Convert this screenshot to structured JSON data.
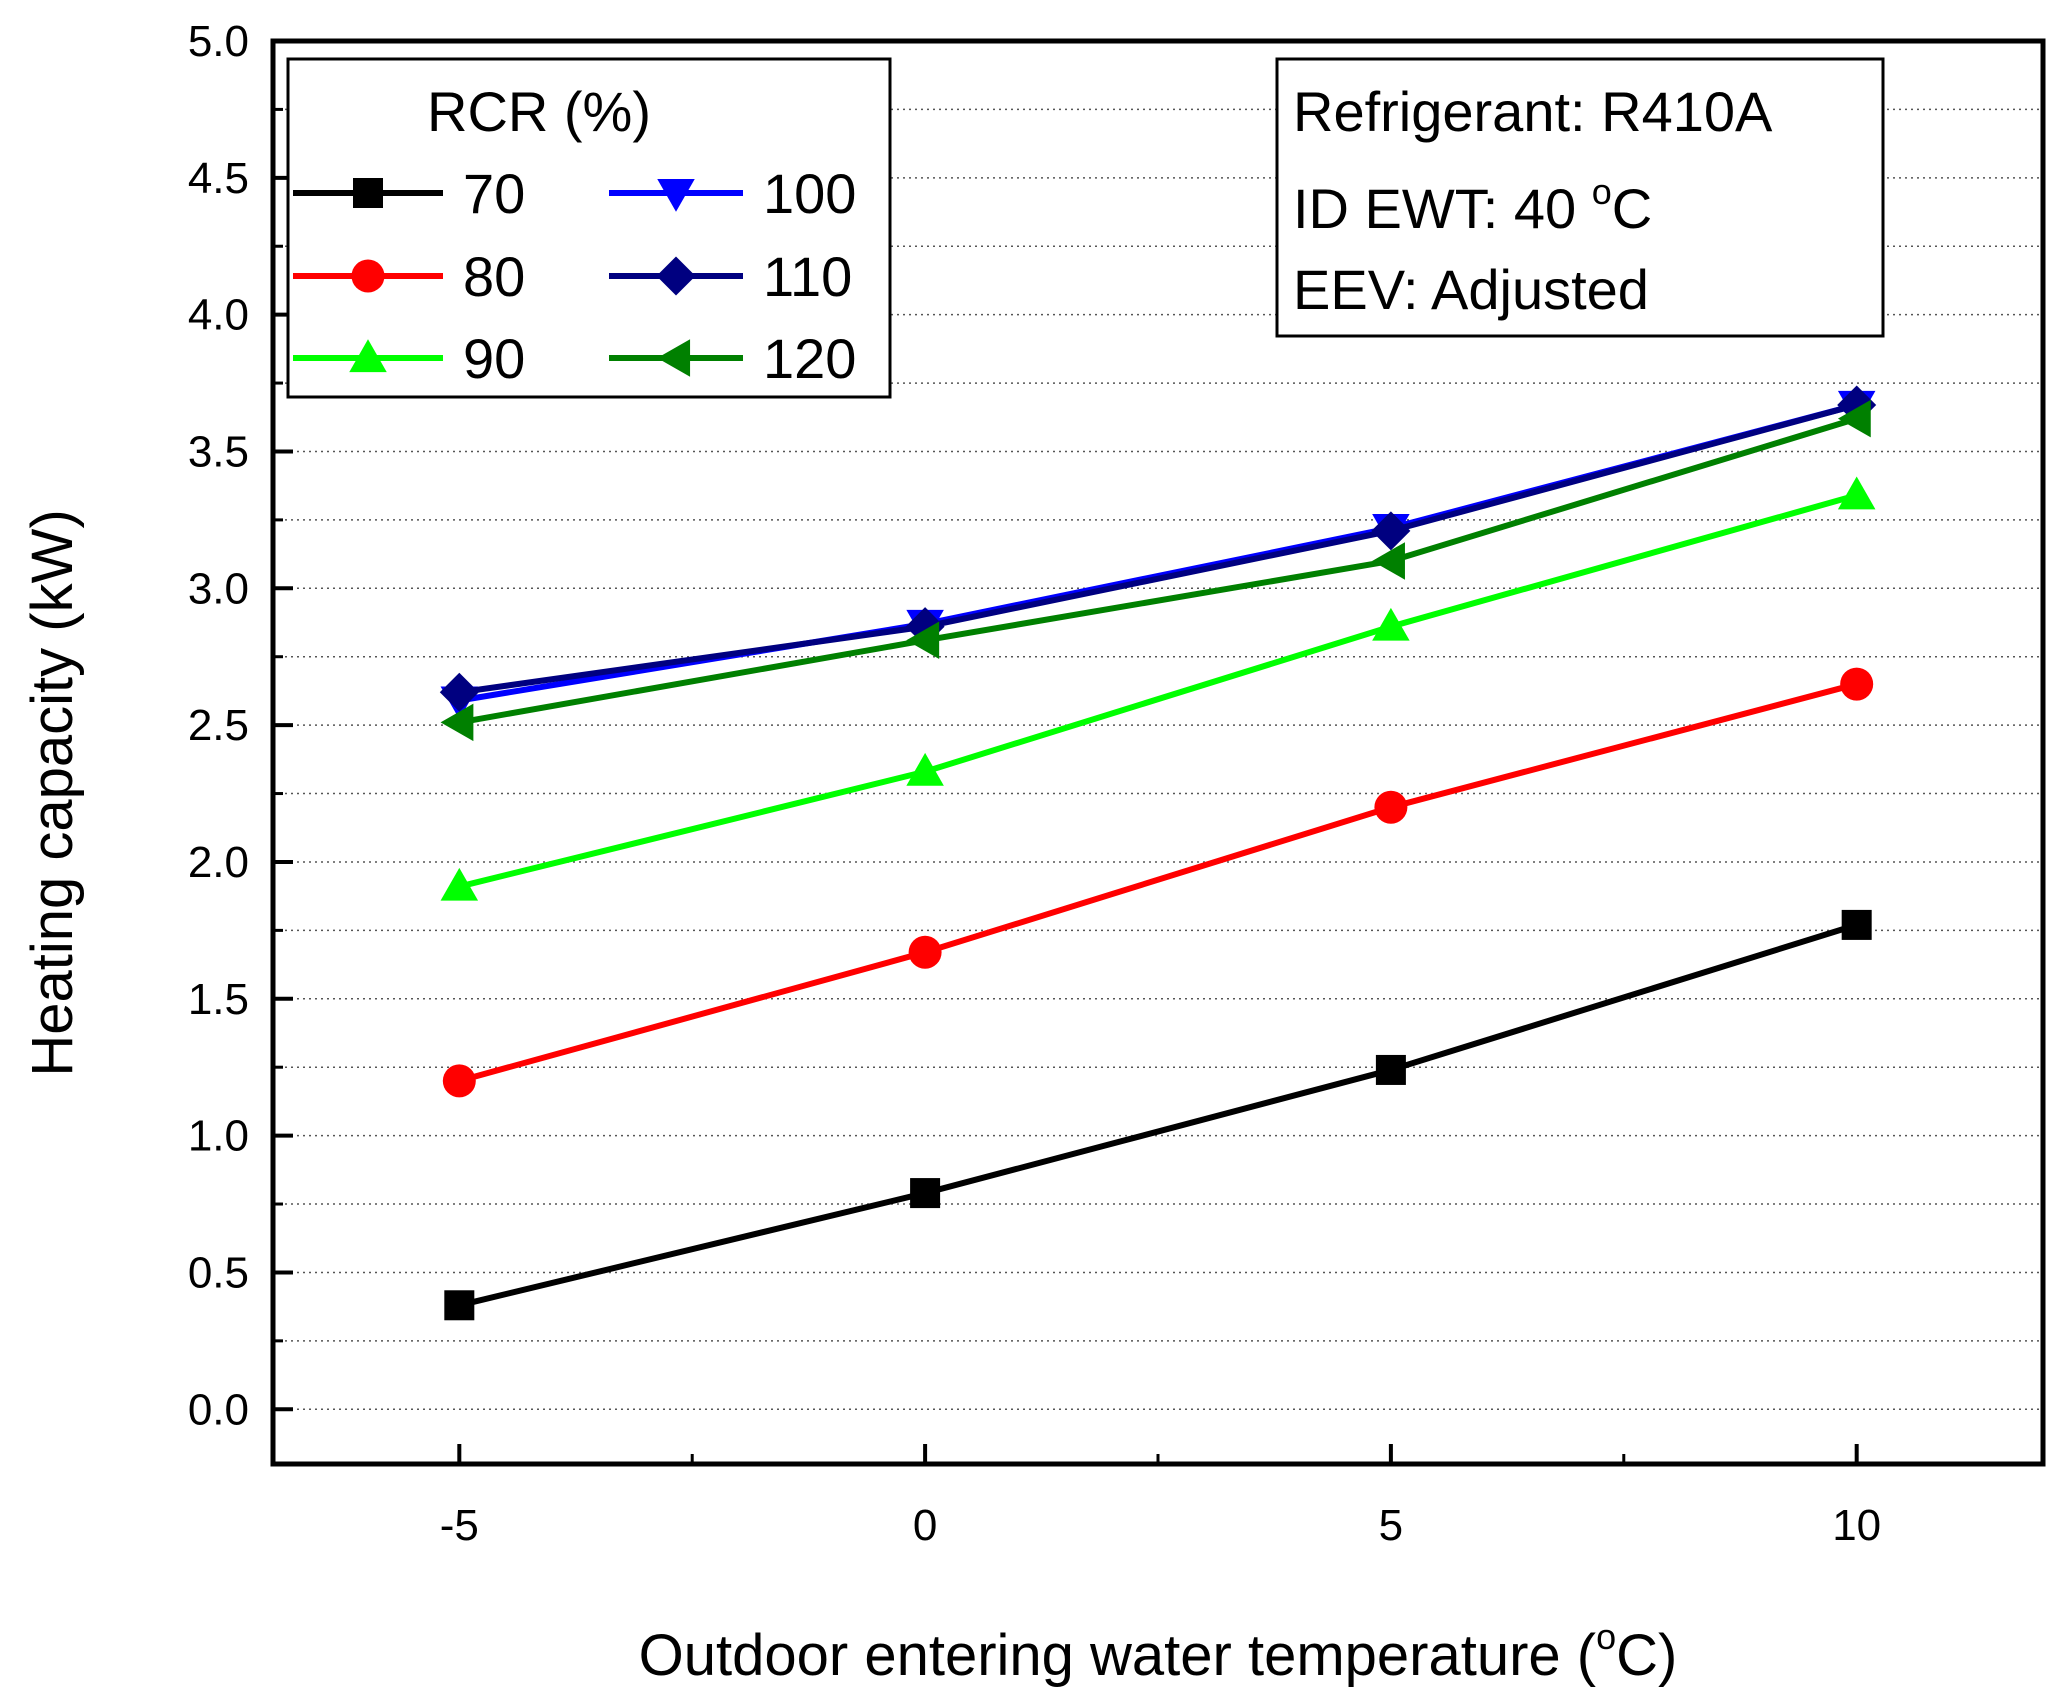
{
  "chart_data": {
    "type": "line",
    "xlabel_main": "Outdoor entering water temperature (",
    "xlabel_sup": "o",
    "xlabel_tail": "C)",
    "ylabel": "Heating capacity (kW)",
    "xlim": [
      -7,
      12
    ],
    "ylim": [
      -0.2,
      5.0
    ],
    "x_ticks": [
      -5,
      0,
      5,
      10
    ],
    "x_tick_labels": [
      "-5",
      "0",
      "5",
      "10"
    ],
    "y_ticks": [
      0.0,
      0.5,
      1.0,
      1.5,
      2.0,
      2.5,
      3.0,
      3.5,
      4.0,
      4.5,
      5.0
    ],
    "y_tick_labels": [
      "0.0",
      "0.5",
      "1.0",
      "1.5",
      "2.0",
      "2.5",
      "3.0",
      "3.5",
      "4.0",
      "4.5",
      "5.0"
    ],
    "grid": "horizontal dotted",
    "legend_title": "RCR (%)",
    "x": [
      -5,
      0,
      5,
      10
    ],
    "series": [
      {
        "name": "70",
        "color": "#000000",
        "marker": "square",
        "values": [
          0.38,
          0.79,
          1.24,
          1.77
        ]
      },
      {
        "name": "80",
        "color": "#ff0000",
        "marker": "circle",
        "values": [
          1.2,
          1.67,
          2.2,
          2.65
        ]
      },
      {
        "name": "90",
        "color": "#00ff00",
        "marker": "triangle-up",
        "values": [
          1.91,
          2.33,
          2.86,
          3.34
        ]
      },
      {
        "name": "100",
        "color": "#0000ff",
        "marker": "triangle-down",
        "values": [
          2.59,
          2.87,
          3.22,
          3.67
        ]
      },
      {
        "name": "110",
        "color": "#000080",
        "marker": "diamond",
        "values": [
          2.62,
          2.86,
          3.21,
          3.67
        ]
      },
      {
        "name": "120",
        "color": "#008000",
        "marker": "triangle-left",
        "values": [
          2.51,
          2.81,
          3.1,
          3.62
        ]
      }
    ],
    "annotations": {
      "line1": "Refrigerant: R410A",
      "line2_main": "ID EWT: 40 ",
      "line2_sup": "o",
      "line2_tail": "C",
      "line3": "EEV: Adjusted"
    }
  }
}
